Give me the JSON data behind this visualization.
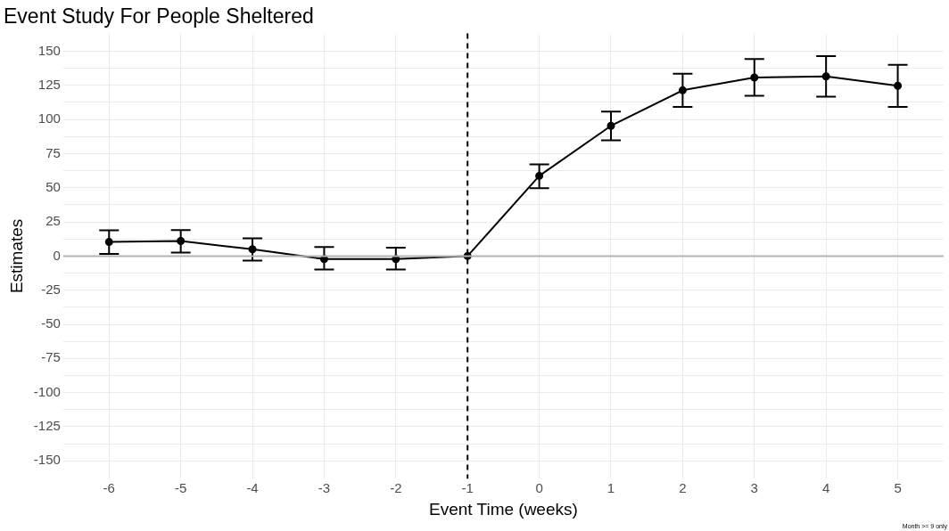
{
  "chart_data": {
    "type": "line",
    "title": "Event Study For People Sheltered",
    "xlabel": "Event Time (weeks)",
    "ylabel": "Estimates",
    "x": [
      -6,
      -5,
      -4,
      -3,
      -2,
      -1,
      0,
      1,
      2,
      3,
      4,
      5
    ],
    "series": [
      {
        "color": "#000000",
        "values": [
          10.3,
          11.0,
          5.0,
          -2.2,
          -2.2,
          0,
          58.7,
          95.4,
          121.4,
          130.8,
          131.6,
          124.7
        ],
        "errors": [
          [
            1.5,
            18.9
          ],
          [
            2.6,
            19.1
          ],
          [
            -3.3,
            13.0
          ],
          [
            -9.9,
            6.6
          ],
          [
            -9.9,
            6.1
          ],
          null,
          [
            49.7,
            67.2
          ],
          [
            84.7,
            105.8
          ],
          [
            109.3,
            133.5
          ],
          [
            117.4,
            144.3
          ],
          [
            116.7,
            146.5
          ],
          [
            109.3,
            140.1
          ]
        ]
      }
    ],
    "xlim": [
      -6.64,
      5.64
    ],
    "xticks": [
      -6,
      -5,
      -4,
      -3,
      -2,
      -1,
      0,
      1,
      2,
      3,
      4,
      5
    ],
    "ylim": [
      -163,
      163
    ],
    "yticks": [
      -150,
      {
        "value": -137.5,
        "label": null
      },
      -125,
      {
        "value": -112.5,
        "label": null
      },
      -100,
      {
        "value": -87.5,
        "label": null
      },
      -75,
      {
        "value": -62.5,
        "label": null
      },
      -50,
      {
        "value": -37.5,
        "label": null
      },
      -25,
      {
        "value": -12.5,
        "label": null
      },
      0,
      {
        "value": 12.5,
        "label": null
      },
      25,
      {
        "value": 37.5,
        "label": null
      },
      50,
      {
        "value": 62.5,
        "label": null
      },
      75,
      {
        "value": 87.5,
        "label": null
      },
      100,
      {
        "value": 112.5,
        "label": null
      },
      125,
      {
        "value": 137.5,
        "label": null
      },
      150
    ],
    "ref_lines": [
      {
        "axis": "y",
        "value": 0,
        "color": "#b3b3b3",
        "line_style": "solid"
      },
      {
        "axis": "x",
        "value": -1,
        "color": "#000000",
        "line_style": "dashed"
      }
    ],
    "grid": true,
    "legend": false,
    "marker": "circle",
    "line_style": "solid",
    "annotations": [
      "Month >= 9 only"
    ]
  }
}
